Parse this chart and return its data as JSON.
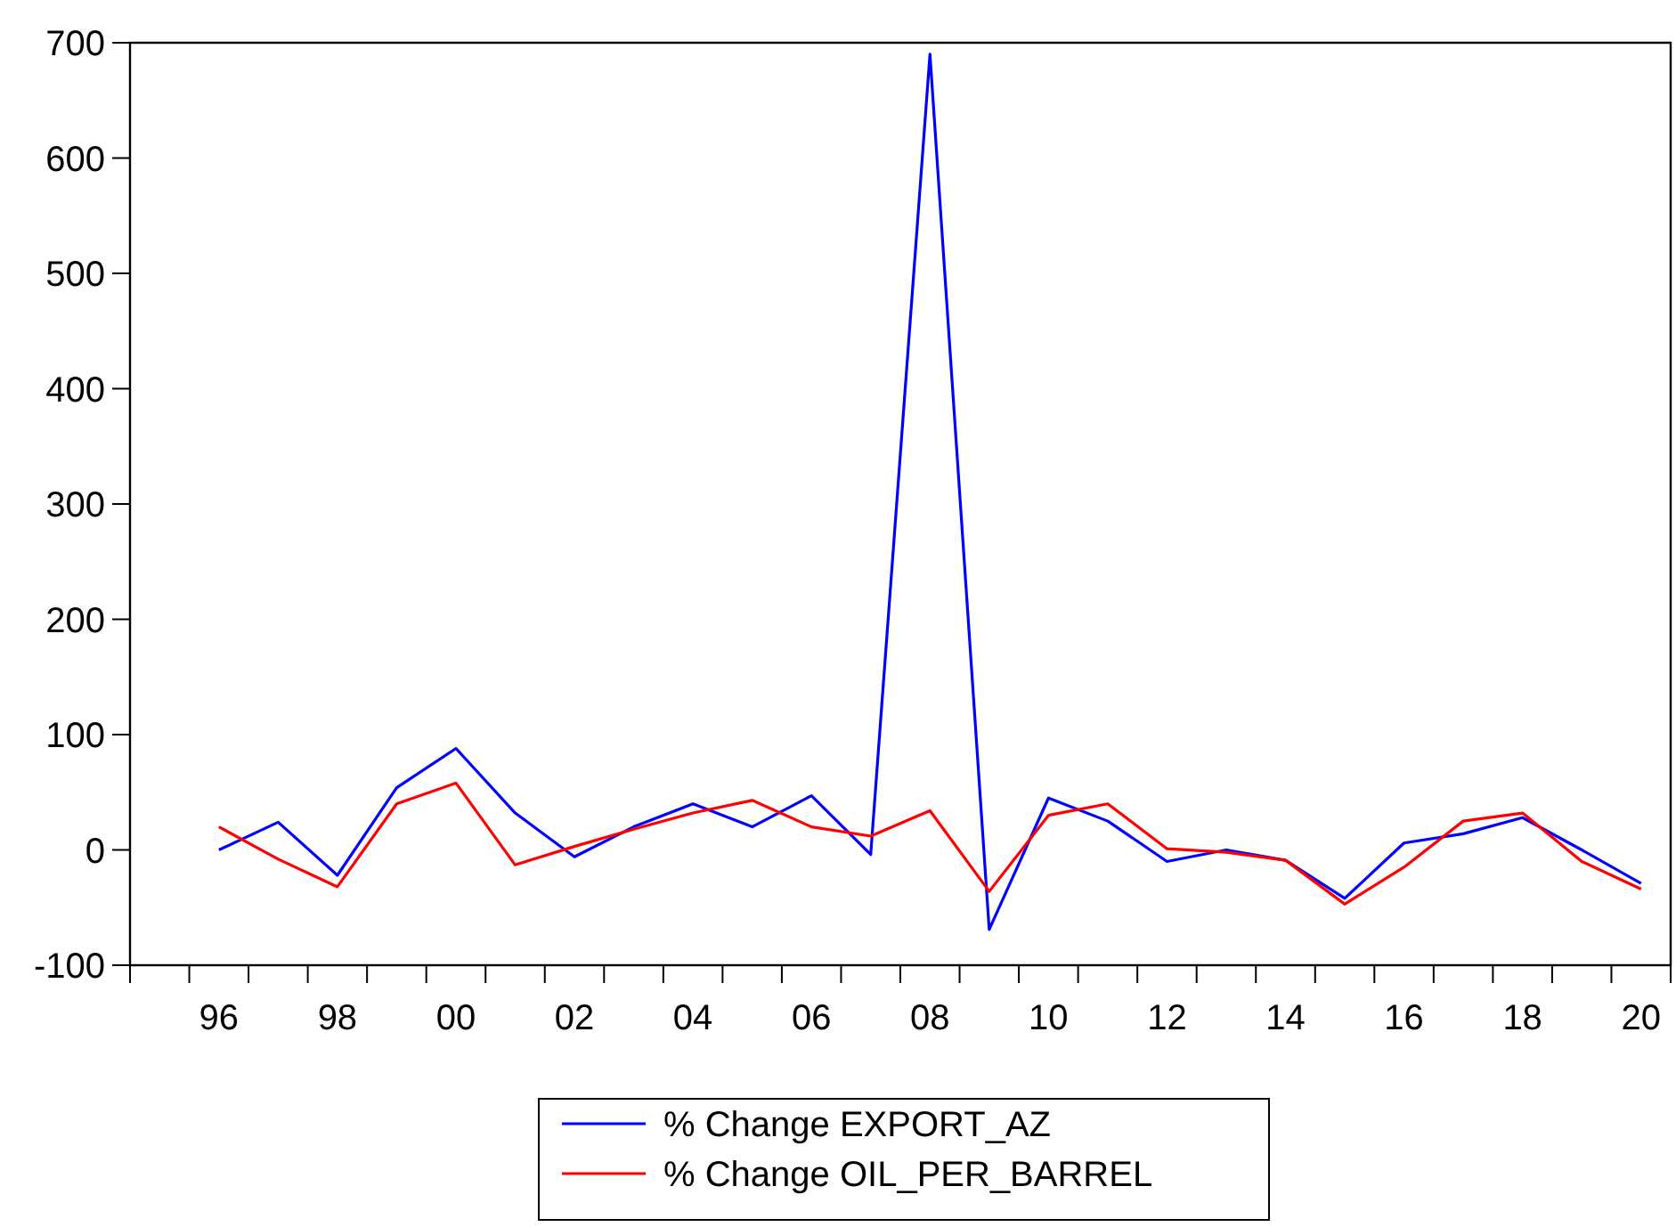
{
  "chart_data": {
    "type": "line",
    "categories": [
      null,
      "96",
      null,
      "98",
      null,
      "00",
      null,
      "02",
      null,
      "04",
      null,
      "06",
      null,
      "08",
      null,
      "10",
      null,
      "12",
      null,
      "14",
      null,
      "16",
      null,
      "18",
      null,
      "20"
    ],
    "series": [
      {
        "name": "% Change EXPORT_AZ",
        "color": "#0000ff",
        "values": [
          null,
          0,
          24,
          -22,
          54,
          88,
          32,
          -6,
          20,
          40,
          20,
          47,
          -4,
          690,
          -69,
          45,
          25,
          -10,
          0,
          -9,
          -42,
          6,
          14,
          28,
          0,
          -29
        ]
      },
      {
        "name": "% Change OIL_PER_BARREL",
        "color": "#ff0000",
        "values": [
          null,
          20,
          -8,
          -32,
          40,
          58,
          -13,
          3,
          18,
          32,
          43,
          20,
          12,
          34,
          -36,
          30,
          40,
          1,
          -2,
          -9,
          -47,
          -15,
          25,
          32,
          -10,
          -34
        ]
      }
    ],
    "ylim": [
      -100,
      700
    ],
    "yticks": [
      -100,
      0,
      100,
      200,
      300,
      400,
      500,
      600,
      700
    ],
    "grid": false,
    "legend": "bottom",
    "marker": "none",
    "line_style": "solid"
  }
}
